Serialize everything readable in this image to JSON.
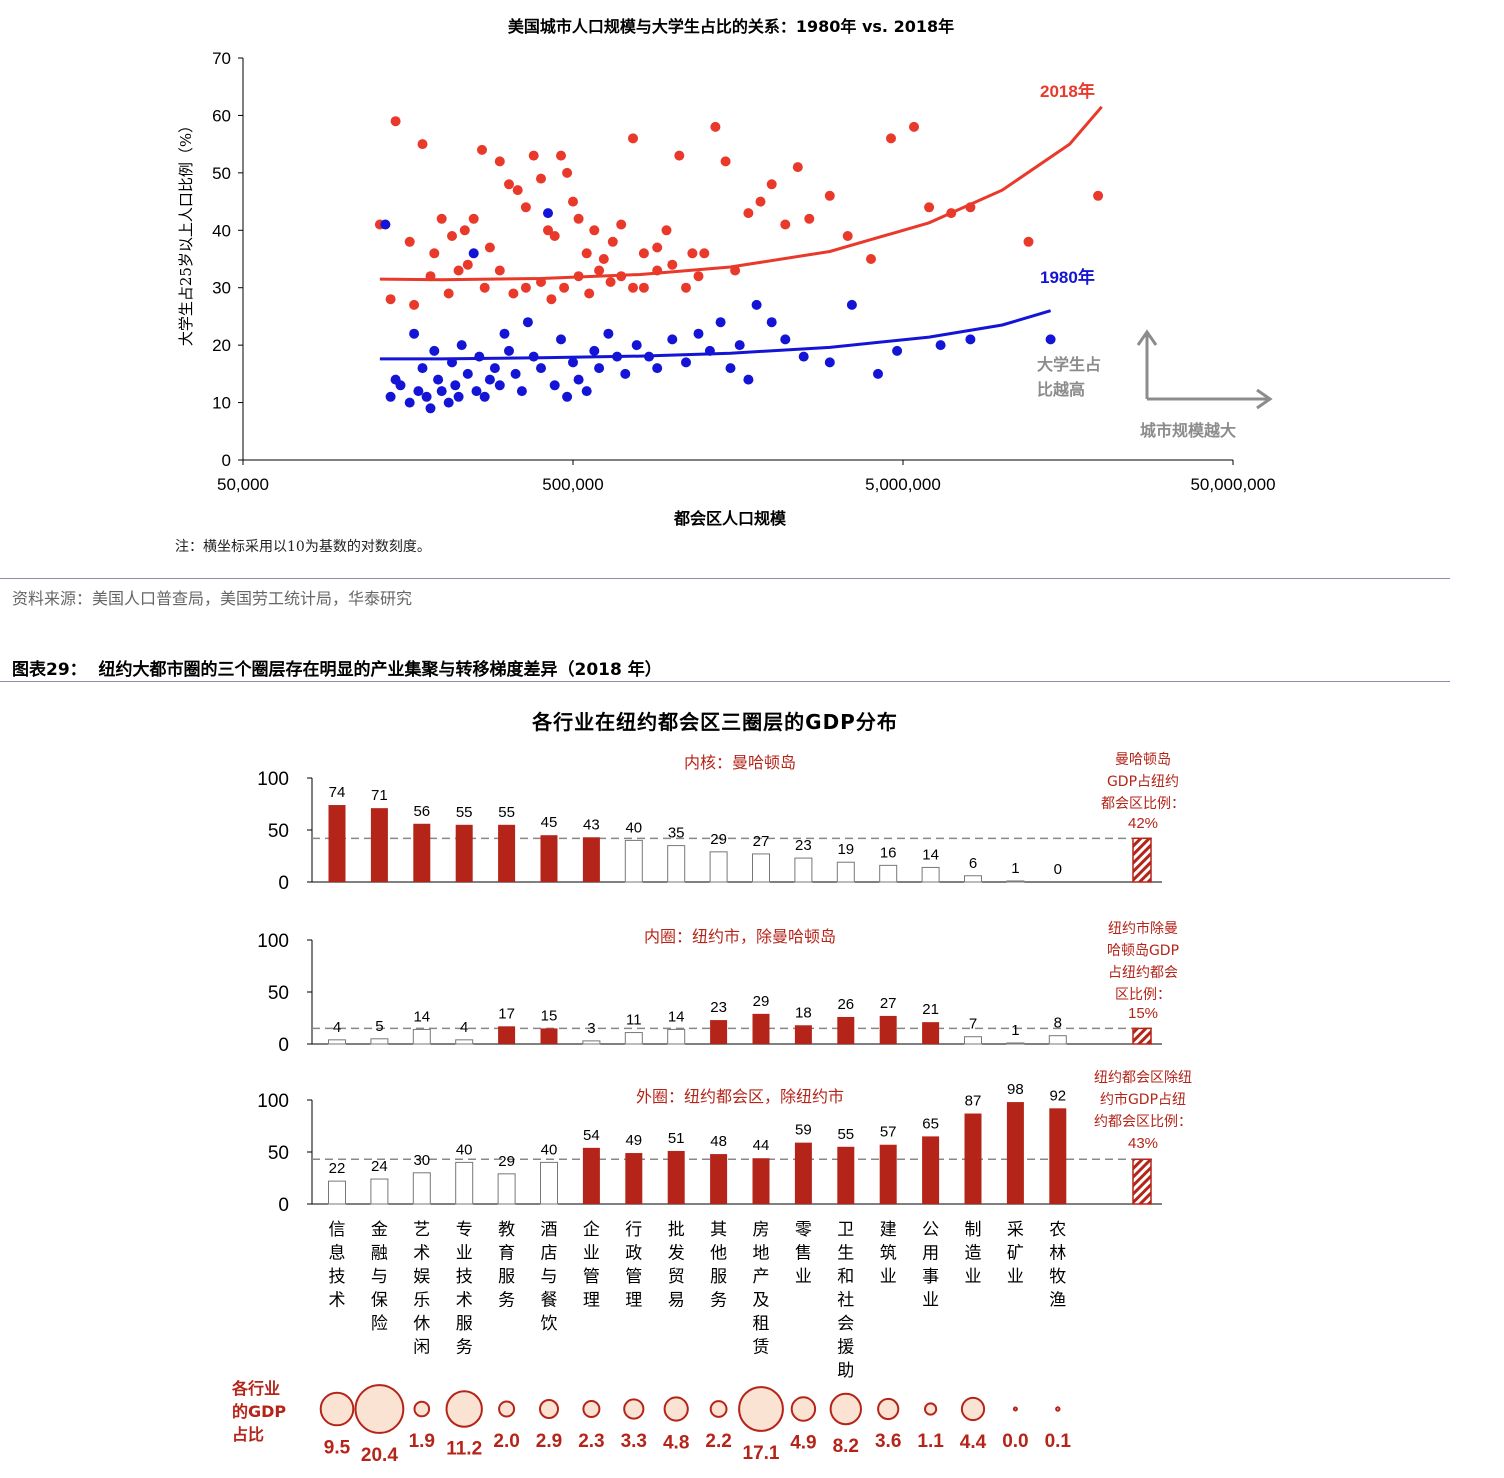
{
  "scatter": {
    "title": "美国城市人口规模与大学生占比的关系：1980年 vs. 2018年",
    "xlabel": "都会区人口规模",
    "ylabel": "大学生占25岁以上人口比例（%）",
    "note": "注：横坐标采用以10为基数的对数刻度。",
    "arrow_up_label": "大学生占比越高",
    "arrow_right_label": "城市规模越大",
    "colors": {
      "s2018": "#e8392b",
      "s1980": "#1414d6",
      "annot": "#8c8c8c"
    }
  },
  "source": "资料来源：美国人口普查局，美国劳工统计局，华泰研究",
  "figure": {
    "title": "图表29：  纽约大都市圈的三个圈层存在明显的产业集聚与转移梯度差异（2018 年）"
  },
  "bars_title": "各行业在纽约都会区三圈层的GDP分布",
  "industries": [
    [
      "信",
      "息",
      "技",
      "术"
    ],
    [
      "金",
      "融",
      "与",
      "保",
      "险"
    ],
    [
      "艺",
      "术",
      "娱",
      "乐",
      "休",
      "闲"
    ],
    [
      "专",
      "业",
      "技",
      "术",
      "服",
      "务"
    ],
    [
      "教",
      "育",
      "服",
      "务"
    ],
    [
      "酒",
      "店",
      "与",
      "餐",
      "饮"
    ],
    [
      "企",
      "业",
      "管",
      "理"
    ],
    [
      "行",
      "政",
      "管",
      "理"
    ],
    [
      "批",
      "发",
      "贸",
      "易"
    ],
    [
      "其",
      "他",
      "服",
      "务"
    ],
    [
      "房",
      "地",
      "产",
      "及",
      "租",
      "赁"
    ],
    [
      "零",
      "售",
      "业"
    ],
    [
      "卫",
      "生",
      "和",
      "社",
      "会",
      "援",
      "助"
    ],
    [
      "建",
      "筑",
      "业"
    ],
    [
      "公",
      "用",
      "事",
      "业"
    ],
    [
      "制",
      "造",
      "业"
    ],
    [
      "采",
      "矿",
      "业"
    ],
    [
      "农",
      "林",
      "牧",
      "渔"
    ]
  ],
  "panels": [
    {
      "label": "内核：曼哈顿岛",
      "side_note": [
        "曼哈顿岛",
        "GDP占纽约",
        "都会区比例："
      ],
      "side_value": "42%",
      "ref": 42,
      "values": [
        74,
        71,
        56,
        55,
        55,
        45,
        43,
        40,
        35,
        29,
        27,
        23,
        19,
        16,
        14,
        6,
        1,
        0
      ],
      "filled": [
        true,
        true,
        true,
        true,
        true,
        true,
        true,
        false,
        false,
        false,
        false,
        false,
        false,
        false,
        false,
        false,
        false,
        false
      ],
      "labels": [
        "74",
        "71",
        "56",
        "55",
        "55",
        "45",
        "43",
        "40",
        "35",
        "29",
        "27",
        "23",
        "19",
        "16",
        "14",
        "6",
        "1",
        "0"
      ]
    },
    {
      "label": "内圈：纽约市，除曼哈顿岛",
      "side_note": [
        "纽约市除曼",
        "哈顿岛GDP",
        "占纽约都会",
        "区比例："
      ],
      "side_value": "15%",
      "ref": 15,
      "values": [
        4,
        5,
        14,
        4,
        17,
        15,
        3,
        11,
        14,
        23,
        29,
        18,
        26,
        27,
        21,
        7,
        1,
        8
      ],
      "filled": [
        false,
        false,
        false,
        false,
        true,
        true,
        false,
        false,
        false,
        true,
        true,
        true,
        true,
        true,
        true,
        false,
        false,
        false
      ],
      "labels": [
        "4",
        "5",
        "14",
        "4",
        "17",
        "15",
        "3",
        "11",
        "14",
        "23",
        "29",
        "18",
        "26",
        "27",
        "21",
        "7",
        "1",
        "8"
      ]
    },
    {
      "label": "外圈：纽约都会区，除纽约市",
      "side_note": [
        "纽约都会区除纽",
        "约市GDP占纽",
        "约都会区比例："
      ],
      "side_value": "43%",
      "ref": 43,
      "values": [
        22,
        24,
        30,
        40,
        29,
        40,
        54,
        49,
        51,
        48,
        44,
        59,
        55,
        57,
        65,
        87,
        98,
        92
      ],
      "filled": [
        false,
        false,
        false,
        false,
        false,
        false,
        true,
        true,
        true,
        true,
        true,
        true,
        true,
        true,
        true,
        true,
        true,
        true
      ],
      "labels": [
        "22",
        "24",
        "30",
        "40",
        "29",
        "40",
        "54",
        "49",
        "51",
        "48",
        "44",
        "59",
        "55",
        "57",
        "65",
        "87",
        "98",
        "92"
      ]
    }
  ],
  "gdp_share": {
    "label": [
      "各行业",
      "的GDP",
      "占比"
    ],
    "values": [
      9.5,
      20.4,
      1.9,
      11.2,
      2.0,
      2.9,
      2.3,
      3.3,
      4.8,
      2.2,
      17.1,
      4.9,
      8.2,
      3.6,
      1.1,
      4.4,
      0.0,
      0.1
    ],
    "labels": [
      "9.5",
      "20.4",
      "1.9",
      "11.2",
      "2.0",
      "2.9",
      "2.3",
      "3.3",
      "4.8",
      "2.2",
      "17.1",
      "4.9",
      "8.2",
      "3.6",
      "1.1",
      "4.4",
      "0.0",
      "0.1"
    ]
  },
  "colors": {
    "bar_fill": "#b52419",
    "bar_empty_stroke": "#777777",
    "ref_line": "#888888",
    "accent_text": "#b52419",
    "bubble_fill": "#fbe3d3"
  },
  "chart_data": [
    {
      "type": "scatter",
      "title": "美国城市人口规模与大学生占比的关系：1980年 vs. 2018年",
      "xlabel": "都会区人口规模",
      "ylabel": "大学生占25岁以上人口比例（%）",
      "xscale": "log10",
      "xlim": [
        50000,
        50000000
      ],
      "ylim": [
        0,
        70
      ],
      "xticks": [
        "50,000",
        "500,000",
        "5,000,000",
        "50,000,000"
      ],
      "yticks": [
        "0",
        "10",
        "20",
        "30",
        "40",
        "50",
        "60",
        "70"
      ],
      "series": [
        {
          "name": "2018年",
          "color": "#e8392b",
          "trend": [
            [
              130000,
              31.5
            ],
            [
              200000,
              31.4
            ],
            [
              400000,
              31.6
            ],
            [
              800000,
              32.3
            ],
            [
              1500000,
              33.6
            ],
            [
              3000000,
              36.3
            ],
            [
              6000000,
              41.3
            ],
            [
              10000000,
              47.0
            ],
            [
              16000000,
              55.0
            ],
            [
              20000000,
              61.5
            ]
          ],
          "points": [
            [
              130000,
              41
            ],
            [
              145000,
              59
            ],
            [
              160000,
              38
            ],
            [
              175000,
              55
            ],
            [
              190000,
              36
            ],
            [
              200000,
              42
            ],
            [
              215000,
              39
            ],
            [
              225000,
              33
            ],
            [
              235000,
              40
            ],
            [
              250000,
              42
            ],
            [
              265000,
              54
            ],
            [
              280000,
              37
            ],
            [
              300000,
              52
            ],
            [
              320000,
              48
            ],
            [
              340000,
              47
            ],
            [
              360000,
              44
            ],
            [
              380000,
              53
            ],
            [
              400000,
              49
            ],
            [
              420000,
              40
            ],
            [
              440000,
              39
            ],
            [
              460000,
              53
            ],
            [
              480000,
              50
            ],
            [
              500000,
              45
            ],
            [
              520000,
              42
            ],
            [
              550000,
              36
            ],
            [
              580000,
              40
            ],
            [
              620000,
              35
            ],
            [
              660000,
              38
            ],
            [
              700000,
              41
            ],
            [
              760000,
              56
            ],
            [
              820000,
              36
            ],
            [
              900000,
              37
            ],
            [
              960000,
              40
            ],
            [
              1050000,
              53
            ],
            [
              1150000,
              36
            ],
            [
              1250000,
              36
            ],
            [
              1350000,
              58
            ],
            [
              1450000,
              52
            ],
            [
              1550000,
              33
            ],
            [
              1700000,
              43
            ],
            [
              1850000,
              45
            ],
            [
              2000000,
              48
            ],
            [
              2200000,
              41
            ],
            [
              2400000,
              51
            ],
            [
              2600000,
              42
            ],
            [
              3000000,
              46
            ],
            [
              3400000,
              39
            ],
            [
              4000000,
              35
            ],
            [
              4600000,
              56
            ],
            [
              5400000,
              58
            ],
            [
              6000000,
              44
            ],
            [
              7000000,
              43
            ],
            [
              8000000,
              44
            ],
            [
              12000000,
              38
            ],
            [
              19500000,
              46
            ],
            [
              140000,
              28
            ],
            [
              165000,
              27
            ],
            [
              185000,
              32
            ],
            [
              210000,
              29
            ],
            [
              240000,
              34
            ],
            [
              270000,
              30
            ],
            [
              300000,
              33
            ],
            [
              330000,
              29
            ],
            [
              360000,
              30
            ],
            [
              400000,
              31
            ],
            [
              430000,
              28
            ],
            [
              470000,
              30
            ],
            [
              520000,
              32
            ],
            [
              560000,
              29
            ],
            [
              600000,
              33
            ],
            [
              650000,
              31
            ],
            [
              700000,
              32
            ],
            [
              760000,
              30
            ],
            [
              820000,
              30
            ],
            [
              900000,
              33
            ],
            [
              1000000,
              34
            ],
            [
              1100000,
              30
            ],
            [
              1200000,
              32
            ]
          ]
        },
        {
          "name": "1980年",
          "color": "#1414d6",
          "trend": [
            [
              130000,
              17.6
            ],
            [
              200000,
              17.6
            ],
            [
              400000,
              17.8
            ],
            [
              800000,
              18.1
            ],
            [
              1500000,
              18.6
            ],
            [
              3000000,
              19.6
            ],
            [
              6000000,
              21.4
            ],
            [
              10000000,
              23.5
            ],
            [
              14000000,
              26.0
            ]
          ],
          "points": [
            [
              135000,
              41
            ],
            [
              140000,
              11
            ],
            [
              145000,
              14
            ],
            [
              150000,
              13
            ],
            [
              160000,
              10
            ],
            [
              165000,
              22
            ],
            [
              170000,
              12
            ],
            [
              175000,
              16
            ],
            [
              180000,
              11
            ],
            [
              185000,
              9
            ],
            [
              190000,
              19
            ],
            [
              195000,
              14
            ],
            [
              200000,
              12
            ],
            [
              210000,
              10
            ],
            [
              215000,
              17
            ],
            [
              220000,
              13
            ],
            [
              225000,
              11
            ],
            [
              230000,
              20
            ],
            [
              240000,
              15
            ],
            [
              250000,
              36
            ],
            [
              255000,
              12
            ],
            [
              260000,
              18
            ],
            [
              270000,
              11
            ],
            [
              280000,
              14
            ],
            [
              290000,
              16
            ],
            [
              300000,
              13
            ],
            [
              310000,
              22
            ],
            [
              320000,
              19
            ],
            [
              335000,
              15
            ],
            [
              350000,
              12
            ],
            [
              365000,
              24
            ],
            [
              380000,
              18
            ],
            [
              400000,
              16
            ],
            [
              420000,
              43
            ],
            [
              440000,
              13
            ],
            [
              460000,
              21
            ],
            [
              480000,
              11
            ],
            [
              500000,
              17
            ],
            [
              520000,
              14
            ],
            [
              550000,
              12
            ],
            [
              580000,
              19
            ],
            [
              600000,
              16
            ],
            [
              640000,
              22
            ],
            [
              680000,
              18
            ],
            [
              720000,
              15
            ],
            [
              780000,
              20
            ],
            [
              850000,
              18
            ],
            [
              900000,
              16
            ],
            [
              1000000,
              21
            ],
            [
              1100000,
              17
            ],
            [
              1200000,
              22
            ],
            [
              1300000,
              19
            ],
            [
              1400000,
              24
            ],
            [
              1500000,
              16
            ],
            [
              1600000,
              20
            ],
            [
              1700000,
              14
            ],
            [
              1800000,
              27
            ],
            [
              2000000,
              24
            ],
            [
              2200000,
              21
            ],
            [
              2500000,
              18
            ],
            [
              3000000,
              17
            ],
            [
              3500000,
              27
            ],
            [
              4200000,
              15
            ],
            [
              4800000,
              19
            ],
            [
              6500000,
              20
            ],
            [
              8000000,
              21
            ],
            [
              14000000,
              21
            ]
          ]
        }
      ]
    },
    {
      "type": "bar",
      "title": "各行业在纽约都会区三圈层的GDP分布",
      "categories": [
        "信息技术",
        "金融与保险",
        "艺术娱乐休闲",
        "专业技术服务",
        "教育服务",
        "酒店与餐饮",
        "企业管理",
        "行政管理",
        "批发贸易",
        "其他服务",
        "房地产及租赁",
        "零售业",
        "卫生和社会援助",
        "建筑业",
        "公用事业",
        "制造业",
        "采矿业",
        "农林牧渔"
      ],
      "ylim": [
        0,
        100
      ],
      "yticks": [
        "0",
        "50",
        "100"
      ],
      "series": [
        {
          "name": "内核：曼哈顿岛",
          "values": [
            74,
            71,
            56,
            55,
            55,
            45,
            43,
            40,
            35,
            29,
            27,
            23,
            19,
            16,
            14,
            6,
            1,
            0
          ],
          "total": 42
        },
        {
          "name": "内圈：纽约市，除曼哈顿岛",
          "values": [
            4,
            5,
            14,
            4,
            17,
            15,
            3,
            11,
            14,
            23,
            29,
            18,
            26,
            27,
            21,
            7,
            1,
            8
          ],
          "total": 15
        },
        {
          "name": "外圈：纽约都会区，除纽约市",
          "values": [
            22,
            24,
            30,
            40,
            29,
            40,
            54,
            49,
            51,
            48,
            44,
            59,
            55,
            57,
            65,
            87,
            98,
            92
          ],
          "total": 43
        }
      ],
      "gdp_share": [
        9.5,
        20.4,
        1.9,
        11.2,
        2.0,
        2.9,
        2.3,
        3.3,
        4.8,
        2.2,
        17.1,
        4.9,
        8.2,
        3.6,
        1.1,
        4.4,
        0.0,
        0.1
      ]
    }
  ]
}
